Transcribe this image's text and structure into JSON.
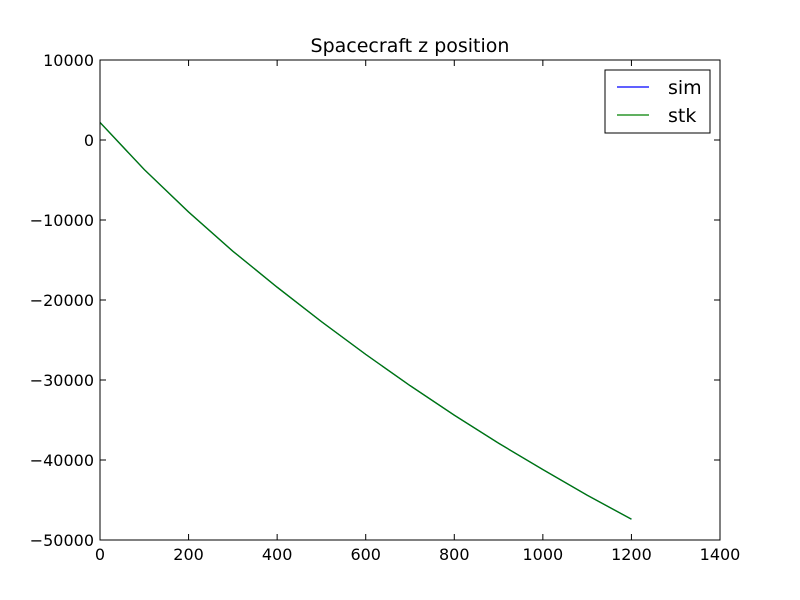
{
  "chart_data": {
    "type": "line",
    "title": "Spacecraft z position",
    "xlabel": "",
    "ylabel": "",
    "xlim": [
      0,
      1400
    ],
    "ylim": [
      -50000,
      10000
    ],
    "xticks": [
      0,
      200,
      400,
      600,
      800,
      1000,
      1200,
      1400
    ],
    "yticks": [
      10000,
      0,
      -10000,
      -20000,
      -30000,
      -40000,
      -50000
    ],
    "xtick_labels": [
      "0",
      "200",
      "400",
      "600",
      "800",
      "1000",
      "1200",
      "1400"
    ],
    "ytick_labels": [
      "10000",
      "0",
      "−10000",
      "−20000",
      "−30000",
      "−40000",
      "−50000"
    ],
    "grid": false,
    "legend_position": "upper right",
    "x": [
      0,
      100,
      200,
      300,
      400,
      500,
      600,
      700,
      800,
      900,
      1000,
      1100,
      1200
    ],
    "series": [
      {
        "name": "sim",
        "color": "#0000ff",
        "values": [
          2200,
          -3700,
          -9000,
          -13900,
          -18400,
          -22700,
          -26800,
          -30700,
          -34400,
          -37900,
          -41200,
          -44400,
          -47400
        ]
      },
      {
        "name": "stk",
        "color": "#008000",
        "values": [
          2200,
          -3700,
          -9000,
          -13900,
          -18400,
          -22700,
          -26800,
          -30700,
          -34400,
          -37900,
          -41200,
          -44400,
          -47400
        ]
      }
    ]
  }
}
